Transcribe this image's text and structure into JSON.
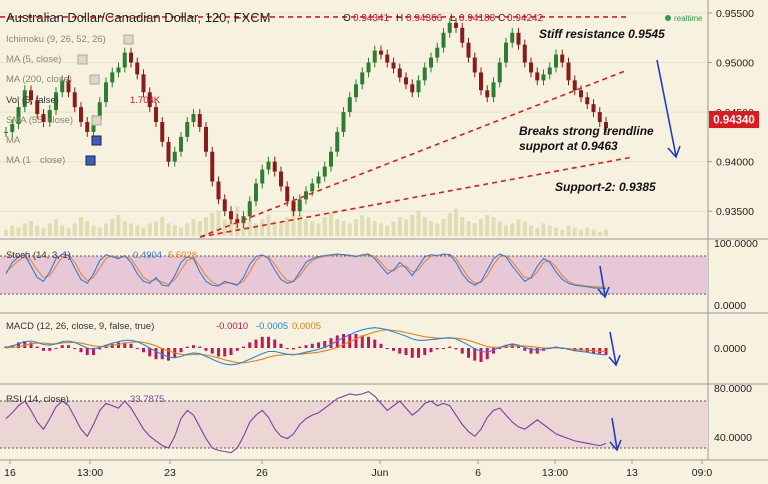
{
  "header": {
    "symbol_title": "Australian Dollar/Canadian Dollar, 120, FXCM",
    "ohlc_o_label": "O",
    "ohlc_o": "0.94341",
    "ohlc_h_label": "H",
    "ohlc_h": "0.94366",
    "ohlc_l_label": "L",
    "ohlc_l": "0.94188",
    "ohlc_c_label": "C",
    "ohlc_c": "0.94242",
    "realtime": "realtime"
  },
  "indicators": {
    "ichimoku": "Ichimoku (9, 26, 52, 26)",
    "ma5": "MA (5, close)",
    "ma200": "MA (200, close)",
    "vol": "Vol (5, false)",
    "vol_value": "1.704K",
    "sma55": "SMA (55, close)",
    "ma_a": "MA",
    "ma_b": "MA (1",
    "ma_b2": "close)"
  },
  "annotations": {
    "resistance": "Stiff resistance 0.9545",
    "breaks_line1": "Breaks strong trendline",
    "breaks_line2": "support at 0.9463",
    "support2": "Support-2: 0.9385"
  },
  "price_axis": {
    "ticks": [
      "0.95500",
      "0.95000",
      "0.94500",
      "0.94000",
      "0.93500"
    ],
    "current": "0.94340"
  },
  "stoch": {
    "label": "Stoch (14, 3, 1)",
    "k": "0.4904",
    "d": "5.5028",
    "ticks": [
      "100.0000",
      "0.0000"
    ]
  },
  "macd": {
    "label": "MACD (12, 26, close, 9, false, true)",
    "v1": "-0.0010",
    "v2": "-0.0005",
    "v3": "0.0005",
    "tick": "0.0000"
  },
  "rsi": {
    "label": "RSI (14, close)",
    "value": "33.7875",
    "ticks": [
      "80.0000",
      "40.0000"
    ]
  },
  "time_axis": [
    "16",
    "13:00",
    "23",
    "26",
    "Jun",
    "6",
    "13:00",
    "13",
    "09:0"
  ],
  "colors": {
    "background": "#f6f2df",
    "bull_candle": "#2e7d32",
    "bear_candle": "#8b1a1a",
    "trendline": "#e31b1b",
    "arrow": "#1f3fbf",
    "price_tag": "#e0191e",
    "stoch_k": "#3a7bd5",
    "stoch_d": "#e8863a",
    "stoch_band": "#e6c8d6",
    "macd_hist": "#c2185b",
    "macd_line": "#1e88e5",
    "signal_line": "#f57c00",
    "rsi_line": "#7b3fa0",
    "rsi_band": "#ecd5d5",
    "realtime_dot": "#2e9a46"
  },
  "chart_data": {
    "type": "line",
    "title": "Australian Dollar/Canadian Dollar, 120, FXCM",
    "ylim": [
      0.9325,
      0.9555
    ],
    "x_ticks": [
      "16",
      "13:00",
      "23",
      "26",
      "Jun",
      "6",
      "13:00",
      "13",
      "09:0"
    ],
    "y_ticks": [
      "0.95500",
      "0.95000",
      "0.94500",
      "0.94000",
      "0.93500"
    ],
    "series": [
      {
        "name": "",
        "values": [
          0.943,
          0.9438,
          0.9455,
          0.9472,
          0.9462,
          0.9448,
          0.944,
          0.9452,
          0.947,
          0.9482,
          0.947,
          0.9455,
          0.944,
          0.943,
          0.9442,
          0.946,
          0.948,
          0.949,
          0.9495,
          0.951,
          0.95,
          0.9488,
          0.947,
          0.9455,
          0.944,
          0.942,
          0.94,
          0.941,
          0.9425,
          0.944,
          0.9448,
          0.9435,
          0.941,
          0.938,
          0.9362,
          0.935,
          0.9342,
          0.9338,
          0.9345,
          0.936,
          0.9378,
          0.9392,
          0.94,
          0.939,
          0.9375,
          0.936,
          0.935,
          0.9362,
          0.937,
          0.9378,
          0.9385,
          0.9395,
          0.941,
          0.943,
          0.945,
          0.9465,
          0.9478,
          0.949,
          0.95,
          0.9512,
          0.9508,
          0.95,
          0.9494,
          0.9485,
          0.9478,
          0.947,
          0.9482,
          0.9495,
          0.9505,
          0.9515,
          0.953,
          0.954,
          0.9535,
          0.952,
          0.9505,
          0.949,
          0.9472,
          0.9465,
          0.948,
          0.95,
          0.952,
          0.953,
          0.9518,
          0.95,
          0.949,
          0.9482,
          0.9488,
          0.9495,
          0.9508,
          0.95,
          0.9482,
          0.9472,
          0.9465,
          0.9458,
          0.945,
          0.944,
          0.9434
        ]
      }
    ],
    "trendlines": [
      {
        "name": "resistance",
        "value": 0.9545
      },
      {
        "name": "trendline_support",
        "value": 0.9463
      },
      {
        "name": "support_2",
        "value": 0.9385
      }
    ],
    "volume": [
      3,
      5,
      4,
      6,
      7,
      5,
      4,
      6,
      8,
      5,
      4,
      6,
      9,
      7,
      5,
      4,
      6,
      8,
      10,
      7,
      6,
      5,
      4,
      6,
      7,
      9,
      6,
      5,
      4,
      6,
      8,
      7,
      9,
      11,
      12,
      8,
      10,
      14,
      9,
      7,
      6,
      8,
      10,
      7,
      6,
      9,
      12,
      10,
      8,
      7,
      6,
      9,
      11,
      8,
      7,
      6,
      8,
      10,
      9,
      7,
      6,
      5,
      7,
      9,
      8,
      10,
      12,
      9,
      7,
      6,
      8,
      11,
      13,
      9,
      7,
      6,
      8,
      10,
      9,
      7,
      5,
      6,
      8,
      7,
      5,
      4,
      6,
      5,
      4,
      3,
      5,
      4,
      3,
      4,
      3,
      2,
      3
    ],
    "stoch_k": [
      40,
      70,
      85,
      90,
      60,
      30,
      20,
      45,
      80,
      92,
      88,
      55,
      25,
      15,
      40,
      75,
      90,
      85,
      80,
      88,
      70,
      40,
      20,
      15,
      30,
      10,
      8,
      35,
      70,
      85,
      80,
      45,
      20,
      10,
      8,
      20,
      15,
      10,
      30,
      65,
      85,
      90,
      80,
      50,
      25,
      15,
      20,
      45,
      70,
      80,
      85,
      88,
      90,
      92,
      90,
      88,
      85,
      90,
      92,
      80,
      60,
      40,
      50,
      70,
      55,
      35,
      60,
      85,
      90,
      88,
      92,
      90,
      70,
      40,
      20,
      10,
      20,
      50,
      80,
      92,
      85,
      60,
      40,
      20,
      30,
      60,
      80,
      70,
      45,
      25,
      15,
      10,
      8,
      6,
      3,
      2,
      1
    ],
    "stoch_d": [
      45,
      60,
      75,
      85,
      75,
      50,
      30,
      35,
      60,
      85,
      90,
      70,
      40,
      22,
      30,
      55,
      80,
      88,
      82,
      85,
      80,
      55,
      30,
      20,
      25,
      18,
      12,
      25,
      50,
      75,
      82,
      60,
      35,
      18,
      10,
      15,
      16,
      12,
      20,
      45,
      75,
      88,
      85,
      65,
      40,
      22,
      20,
      35,
      58,
      75,
      82,
      86,
      88,
      90,
      91,
      89,
      87,
      88,
      90,
      86,
      70,
      50,
      48,
      60,
      60,
      45,
      50,
      72,
      86,
      89,
      90,
      91,
      80,
      55,
      30,
      15,
      18,
      35,
      65,
      85,
      88,
      72,
      50,
      30,
      28,
      45,
      70,
      74,
      58,
      35,
      20,
      12,
      10,
      8,
      6,
      5,
      5
    ],
    "macd": [
      0.0001,
      0.0003,
      0.0006,
      0.0009,
      0.001,
      0.0008,
      0.0005,
      0.0004,
      0.0006,
      0.0009,
      0.001,
      0.0008,
      0.0004,
      0.0,
      -0.0002,
      0.0001,
      0.0004,
      0.0007,
      0.0009,
      0.0011,
      0.0011,
      0.0009,
      0.0005,
      0.0,
      -0.0005,
      -0.0009,
      -0.0013,
      -0.0014,
      -0.0012,
      -0.0009,
      -0.0007,
      -0.0008,
      -0.0012,
      -0.0016,
      -0.002,
      -0.0023,
      -0.0024,
      -0.0023,
      -0.002,
      -0.0016,
      -0.0012,
      -0.0008,
      -0.0005,
      -0.0005,
      -0.0007,
      -0.0009,
      -0.001,
      -0.0008,
      -0.0006,
      -0.0004,
      -0.0002,
      0.0001,
      0.0005,
      0.001,
      0.0015,
      0.0019,
      0.0023,
      0.0026,
      0.0028,
      0.0029,
      0.0028,
      0.0026,
      0.0023,
      0.002,
      0.0017,
      0.0013,
      0.0011,
      0.0011,
      0.0012,
      0.0013,
      0.0014,
      0.0015,
      0.0013,
      0.0009,
      0.0004,
      -0.0001,
      -0.0005,
      -0.0006,
      -0.0003,
      0.0001,
      0.0004,
      0.0006,
      0.0004,
      0.0001,
      -0.0002,
      -0.0003,
      -0.0002,
      0.0,
      0.0001,
      0.0,
      -0.0002,
      -0.0004,
      -0.0005,
      -0.0006,
      -0.0008,
      -0.0009,
      -0.001
    ],
    "macd_signal": [
      0.0,
      0.0001,
      0.0002,
      0.0004,
      0.0006,
      0.0007,
      0.0007,
      0.0006,
      0.0006,
      0.0007,
      0.0008,
      0.0008,
      0.0007,
      0.0005,
      0.0003,
      0.0002,
      0.0002,
      0.0004,
      0.0005,
      0.0007,
      0.0008,
      0.0009,
      0.0008,
      0.0006,
      0.0003,
      -0.0001,
      -0.0004,
      -0.0007,
      -0.0009,
      -0.001,
      -0.0009,
      -0.0009,
      -0.001,
      -0.0012,
      -0.0014,
      -0.0017,
      -0.0019,
      -0.0021,
      -0.0021,
      -0.002,
      -0.0018,
      -0.0016,
      -0.0013,
      -0.0011,
      -0.001,
      -0.0009,
      -0.0009,
      -0.0009,
      -0.0008,
      -0.0007,
      -0.0006,
      -0.0004,
      -0.0002,
      0.0001,
      0.0005,
      0.0009,
      0.0013,
      0.0017,
      0.002,
      0.0023,
      0.0025,
      0.0026,
      0.0025,
      0.0024,
      0.0022,
      0.002,
      0.0018,
      0.0016,
      0.0015,
      0.0014,
      0.0014,
      0.0014,
      0.0014,
      0.0013,
      0.0011,
      0.0008,
      0.0005,
      0.0002,
      0.0001,
      0.0001,
      0.0002,
      0.0003,
      0.0003,
      0.0003,
      0.0002,
      0.0001,
      0.0,
      0.0,
      0.0,
      0.0,
      -0.0001,
      -0.0002,
      -0.0003,
      -0.0003,
      -0.0004,
      -0.0005,
      -0.0005
    ],
    "rsi": [
      55,
      60,
      66,
      70,
      62,
      52,
      46,
      55,
      65,
      70,
      66,
      56,
      46,
      40,
      50,
      62,
      68,
      66,
      64,
      70,
      64,
      55,
      46,
      40,
      36,
      32,
      30,
      40,
      55,
      62,
      58,
      48,
      38,
      30,
      28,
      27,
      26,
      30,
      40,
      52,
      58,
      62,
      56,
      46,
      40,
      38,
      42,
      50,
      55,
      58,
      60,
      64,
      68,
      72,
      74,
      76,
      75,
      76,
      78,
      74,
      68,
      62,
      66,
      70,
      64,
      58,
      62,
      68,
      70,
      66,
      68,
      66,
      58,
      50,
      44,
      40,
      46,
      56,
      62,
      64,
      58,
      52,
      48,
      46,
      50,
      54,
      50,
      46,
      42,
      40,
      38,
      36,
      35,
      34,
      33,
      32,
      33.79
    ]
  }
}
